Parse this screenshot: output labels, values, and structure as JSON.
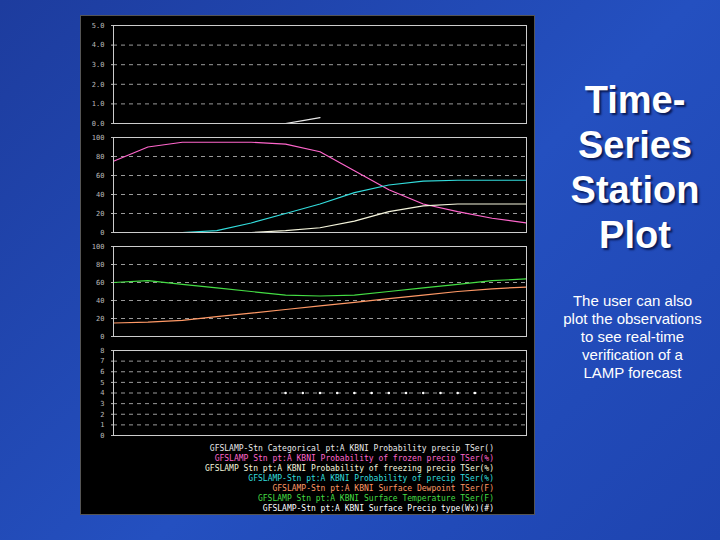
{
  "slide": {
    "title": "Time-Series Station Plot",
    "text": "The user can also plot the observations to see real-time verification of a LAMP forecast"
  },
  "chart_data": [
    {
      "type": "line",
      "x": [
        0,
        2,
        4,
        6,
        8,
        10,
        11,
        12,
        14,
        16,
        18,
        20,
        22,
        24
      ],
      "xlim": [
        0,
        24
      ],
      "ylim": [
        0,
        5
      ],
      "yticks": [
        0,
        1,
        2,
        3,
        4,
        5
      ],
      "grid": true,
      "tick_labels": "y",
      "series": [
        {
          "name": "GFSLAMP-Stn Categorical pt:A KBNI Probability precip TSer()",
          "color": "#e8e8e8",
          "values": [
            null,
            null,
            null,
            null,
            null,
            0,
            0.15,
            0.3,
            null,
            null,
            null,
            null,
            null,
            null
          ]
        }
      ]
    },
    {
      "type": "line",
      "x": [
        0,
        2,
        4,
        6,
        8,
        10,
        12,
        14,
        16,
        18,
        20,
        22,
        24
      ],
      "xlim": [
        0,
        24
      ],
      "ylim": [
        0,
        100
      ],
      "yticks": [
        0,
        20,
        40,
        60,
        80,
        100
      ],
      "grid": true,
      "tick_labels": "y",
      "series": [
        {
          "name": "GFSLAMP Stn pt:A KBNI Probability of frozen precip TSer(%)",
          "color": "#ff66cc",
          "values": [
            75,
            90,
            95,
            95,
            95,
            93,
            85,
            65,
            45,
            30,
            22,
            15,
            10
          ]
        },
        {
          "name": "GFSLAMP Stn pt:A KBNI Probability of freezing precip TSer(%)",
          "color": "#f5f5dc",
          "values": [
            0,
            0,
            0,
            0,
            0,
            2,
            5,
            12,
            22,
            28,
            30,
            30,
            30
          ]
        },
        {
          "name": "GFSLAMP-Stn pt:A KBNI Probability of precip TSer(%)",
          "color": "#33dddd",
          "values": [
            0,
            0,
            0,
            2,
            10,
            20,
            30,
            42,
            50,
            54,
            55,
            55,
            55
          ]
        }
      ]
    },
    {
      "type": "line",
      "x": [
        0,
        2,
        4,
        6,
        8,
        10,
        12,
        14,
        16,
        18,
        20,
        22,
        24
      ],
      "xlim": [
        0,
        24
      ],
      "ylim": [
        0,
        100
      ],
      "yticks": [
        0,
        20,
        40,
        60,
        80,
        100
      ],
      "grid": true,
      "tick_labels": "y",
      "series": [
        {
          "name": "GFSLAMP-Stn pt:A KBNI Surface Dewpoint TSer(F)",
          "color": "#ff9966",
          "values": [
            15,
            16,
            18,
            22,
            26,
            30,
            34,
            38,
            42,
            46,
            50,
            53,
            55
          ]
        },
        {
          "name": "GFSLAMP Stn pt:A KBNI Surface Temperature TSer(F)",
          "color": "#44dd44",
          "values": [
            60,
            62,
            58,
            54,
            50,
            46,
            45,
            46,
            50,
            54,
            58,
            62,
            64
          ]
        }
      ]
    },
    {
      "type": "scatter",
      "x": [
        10,
        11,
        12,
        13,
        14,
        15,
        16,
        17,
        18,
        19,
        20,
        21
      ],
      "xlim": [
        0,
        24
      ],
      "ylim": [
        0,
        8
      ],
      "yticks": [
        0,
        1,
        2,
        3,
        4,
        5,
        6,
        7,
        8
      ],
      "grid": true,
      "tick_labels": "y",
      "series": [
        {
          "name": "GFSLAMP-Stn pt:A KBNI Surface Precip type(Wx)(#)",
          "color": "#ffffff",
          "marker": "dot",
          "values": [
            4,
            4,
            4,
            4,
            4,
            4,
            4,
            4,
            4,
            4,
            4,
            4
          ]
        }
      ]
    }
  ]
}
